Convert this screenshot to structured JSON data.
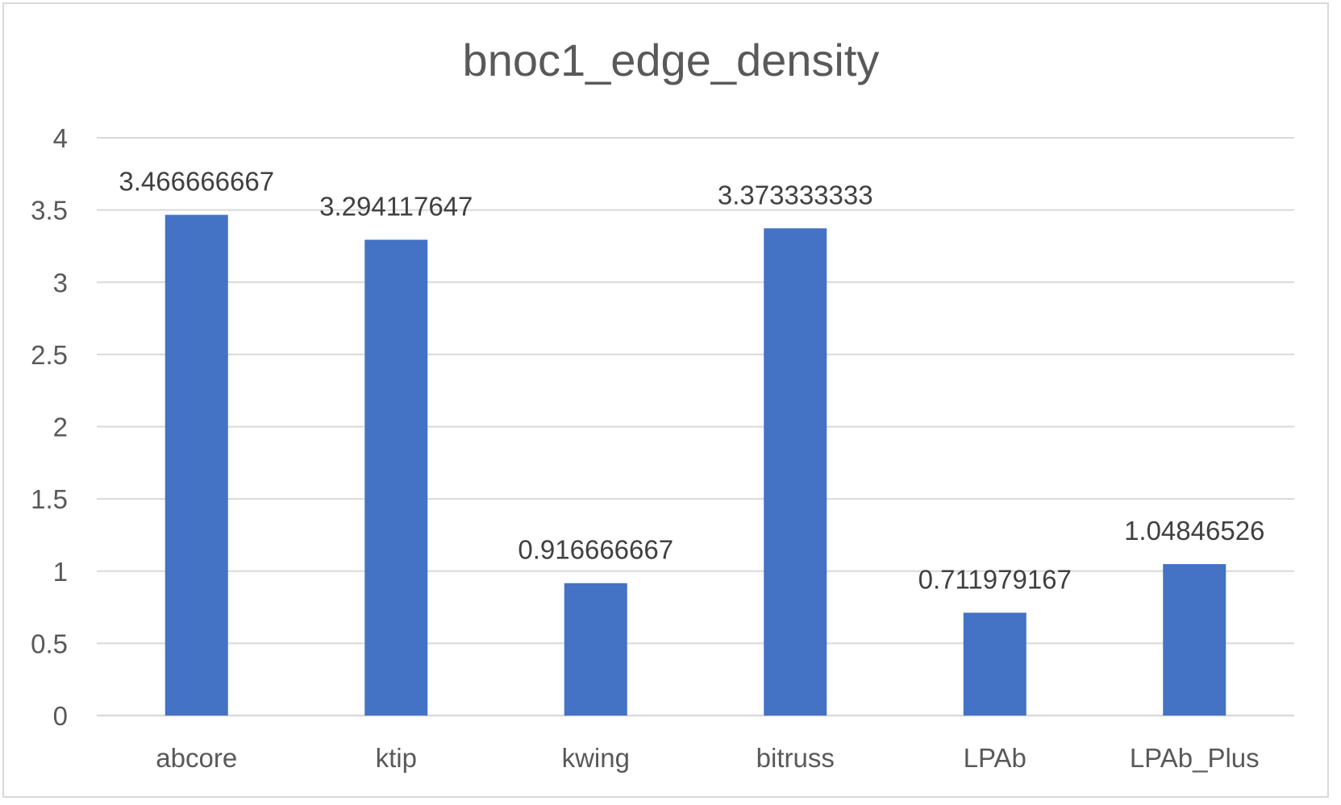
{
  "chart_data": {
    "type": "bar",
    "title": "bnoc1_edge_density",
    "xlabel": "",
    "ylabel": "",
    "categories": [
      "abcore",
      "ktip",
      "kwing",
      "bitruss",
      "LPAb",
      "LPAb_Plus"
    ],
    "values": [
      3.466666667,
      3.294117647,
      0.916666667,
      3.373333333,
      0.711979167,
      1.04846526
    ],
    "data_labels": [
      "3.466666667",
      "3.294117647",
      "0.916666667",
      "3.373333333",
      "0.711979167",
      "1.04846526"
    ],
    "ylim": [
      0,
      4
    ],
    "yticks": [
      0,
      0.5,
      1,
      1.5,
      2,
      2.5,
      3,
      3.5,
      4
    ],
    "ytick_labels": [
      "0",
      "0.5",
      "1",
      "1.5",
      "2",
      "2.5",
      "3",
      "3.5",
      "4"
    ],
    "grid": true,
    "legend": "none",
    "bar_color": "#4472C4",
    "grid_color": "#d9d9d9"
  }
}
